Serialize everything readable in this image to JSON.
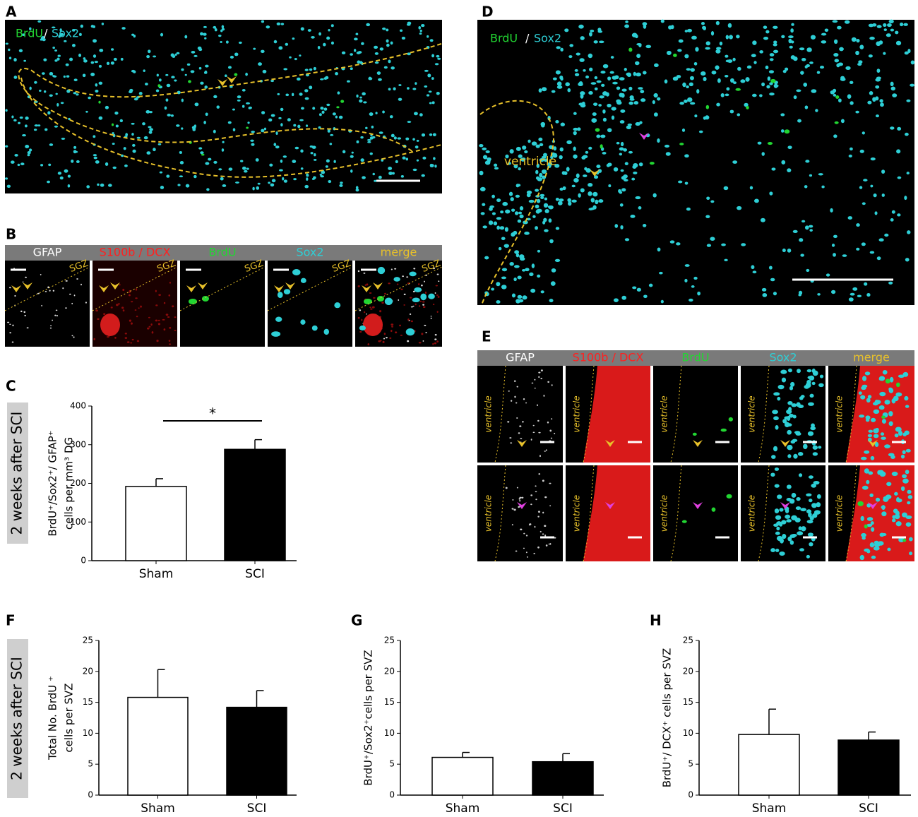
{
  "image_panels": [
    {
      "letter": "A",
      "stain": [
        "BrdU",
        "/",
        "Sox2"
      ]
    },
    {
      "letter": "B",
      "columns": [
        "GFAP",
        "S100b / DCX",
        "BrdU",
        "Sox2",
        "merge"
      ],
      "region": "SGZ"
    },
    {
      "letter": "D",
      "stain": [
        "BrdU",
        "/",
        "Sox2"
      ],
      "region": "ventricle"
    },
    {
      "letter": "E",
      "columns": [
        "GFAP",
        "S100b / DCX",
        "BrdU",
        "Sox2",
        "merge"
      ],
      "region": "ventricle"
    }
  ],
  "chart_data": [
    {
      "type": "bar",
      "letter": "C",
      "side_label": "2 weeks after SCI",
      "ylabel": [
        "BrdU⁺/Sox2⁺/ GFAP⁺",
        "cells per mm³ DG"
      ],
      "categories": [
        "Sham",
        "SCI"
      ],
      "values": [
        192,
        288
      ],
      "errors": [
        20,
        25
      ],
      "colors": [
        "#ffffff",
        "#000000"
      ],
      "ylim": [
        0,
        400
      ],
      "yticks": [
        0,
        100,
        200,
        300,
        400
      ],
      "annotation": "*"
    },
    {
      "type": "bar",
      "letter": "F",
      "side_label": "2 weeks after SCI",
      "ylabel": [
        "Total No. BrdU ⁺",
        "cells per SVZ"
      ],
      "categories": [
        "Sham",
        "SCI"
      ],
      "values": [
        15.8,
        14.2
      ],
      "errors": [
        4.5,
        2.7
      ],
      "colors": [
        "#ffffff",
        "#000000"
      ],
      "ylim": [
        0,
        25
      ],
      "yticks": [
        0,
        5,
        10,
        15,
        20,
        25
      ]
    },
    {
      "type": "bar",
      "letter": "G",
      "ylabel": [
        "BrdU⁺/Sox2⁺cells per SVZ"
      ],
      "categories": [
        "Sham",
        "SCI"
      ],
      "values": [
        6.1,
        5.4
      ],
      "errors": [
        0.8,
        1.3
      ],
      "colors": [
        "#ffffff",
        "#000000"
      ],
      "ylim": [
        0,
        25
      ],
      "yticks": [
        0,
        5,
        10,
        15,
        20,
        25
      ]
    },
    {
      "type": "bar",
      "letter": "H",
      "ylabel": [
        "BrdU⁺/ DCX⁺ cells per SVZ"
      ],
      "categories": [
        "Sham",
        "SCI"
      ],
      "values": [
        9.8,
        8.9
      ],
      "errors": [
        4.1,
        1.3
      ],
      "colors": [
        "#ffffff",
        "#000000"
      ],
      "ylim": [
        0,
        25
      ],
      "yticks": [
        0,
        5,
        10,
        15,
        20,
        25
      ]
    }
  ]
}
